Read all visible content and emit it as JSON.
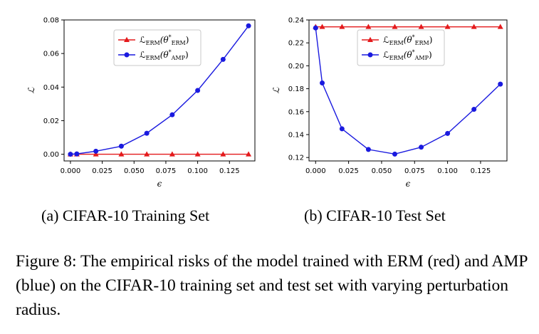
{
  "chart_data": [
    {
      "type": "line",
      "subcaption": "(a) CIFAR-10 Training Set",
      "xlabel": "ϵ",
      "ylabel": "ℒ",
      "xlim": [
        -0.005,
        0.145
      ],
      "ylim": [
        -0.004,
        0.08
      ],
      "xticks": [
        0.0,
        0.025,
        0.05,
        0.075,
        0.1,
        0.125
      ],
      "xtick_labels": [
        "0.000",
        "0.025",
        "0.050",
        "0.075",
        "0.100",
        "0.125"
      ],
      "yticks": [
        0.0,
        0.02,
        0.04,
        0.06,
        0.08
      ],
      "ytick_labels": [
        "0.00",
        "0.02",
        "0.04",
        "0.06",
        "0.08"
      ],
      "legend_position": "top-center",
      "series": [
        {
          "name": "ℒERM(θ*ERM)",
          "legend_main": "ℒ",
          "legend_sub1": "ERM",
          "legend_mid": "(θ",
          "legend_sup": "*",
          "legend_sub2": "ERM",
          "legend_end": ")",
          "color": "#e41a1c",
          "marker": "triangle",
          "x": [
            0.0,
            0.005,
            0.02,
            0.04,
            0.06,
            0.08,
            0.1,
            0.12,
            0.14
          ],
          "y": [
            0.0,
            0.0,
            0.0,
            0.0,
            0.0,
            0.0,
            0.0,
            0.0,
            0.0
          ]
        },
        {
          "name": "ℒERM(θ*AMP)",
          "legend_main": "ℒ",
          "legend_sub1": "ERM",
          "legend_mid": "(θ",
          "legend_sup": "*",
          "legend_sub2": "AMP",
          "legend_end": ")",
          "color": "#1a1adf",
          "marker": "circle",
          "x": [
            0.0,
            0.005,
            0.02,
            0.04,
            0.06,
            0.08,
            0.1,
            0.12,
            0.14
          ],
          "y": [
            0.0,
            0.0002,
            0.0018,
            0.0048,
            0.0125,
            0.0235,
            0.038,
            0.0565,
            0.0765
          ]
        }
      ]
    },
    {
      "type": "line",
      "subcaption": "(b) CIFAR-10 Test Set",
      "xlabel": "ϵ",
      "ylabel": "ℒ",
      "xlim": [
        -0.005,
        0.145
      ],
      "ylim": [
        0.117,
        0.24
      ],
      "xticks": [
        0.0,
        0.025,
        0.05,
        0.075,
        0.1,
        0.125
      ],
      "xtick_labels": [
        "0.000",
        "0.025",
        "0.050",
        "0.075",
        "0.100",
        "0.125"
      ],
      "yticks": [
        0.12,
        0.14,
        0.16,
        0.18,
        0.2,
        0.22,
        0.24
      ],
      "ytick_labels": [
        "0.12",
        "0.14",
        "0.16",
        "0.18",
        "0.20",
        "0.22",
        "0.24"
      ],
      "legend_position": "top-center",
      "series": [
        {
          "name": "ℒERM(θ*ERM)",
          "legend_main": "ℒ",
          "legend_sub1": "ERM",
          "legend_mid": "(θ",
          "legend_sup": "*",
          "legend_sub2": "ERM",
          "legend_end": ")",
          "color": "#e41a1c",
          "marker": "triangle",
          "x": [
            0.0,
            0.005,
            0.02,
            0.04,
            0.06,
            0.08,
            0.1,
            0.12,
            0.14
          ],
          "y": [
            0.234,
            0.234,
            0.234,
            0.234,
            0.234,
            0.234,
            0.234,
            0.234,
            0.234
          ]
        },
        {
          "name": "ℒERM(θ*AMP)",
          "legend_main": "ℒ",
          "legend_sub1": "ERM",
          "legend_mid": "(θ",
          "legend_sup": "*",
          "legend_sub2": "AMP",
          "legend_end": ")",
          "color": "#1a1adf",
          "marker": "circle",
          "x": [
            0.0,
            0.005,
            0.02,
            0.04,
            0.06,
            0.08,
            0.1,
            0.12,
            0.14
          ],
          "y": [
            0.233,
            0.185,
            0.145,
            0.127,
            0.123,
            0.129,
            0.141,
            0.162,
            0.184
          ]
        }
      ]
    }
  ],
  "figure_caption": "Figure 8: The empirical risks of the model trained with ERM (red) and AMP (blue) on the CIFAR-10 training set and test set with varying perturbation radius."
}
